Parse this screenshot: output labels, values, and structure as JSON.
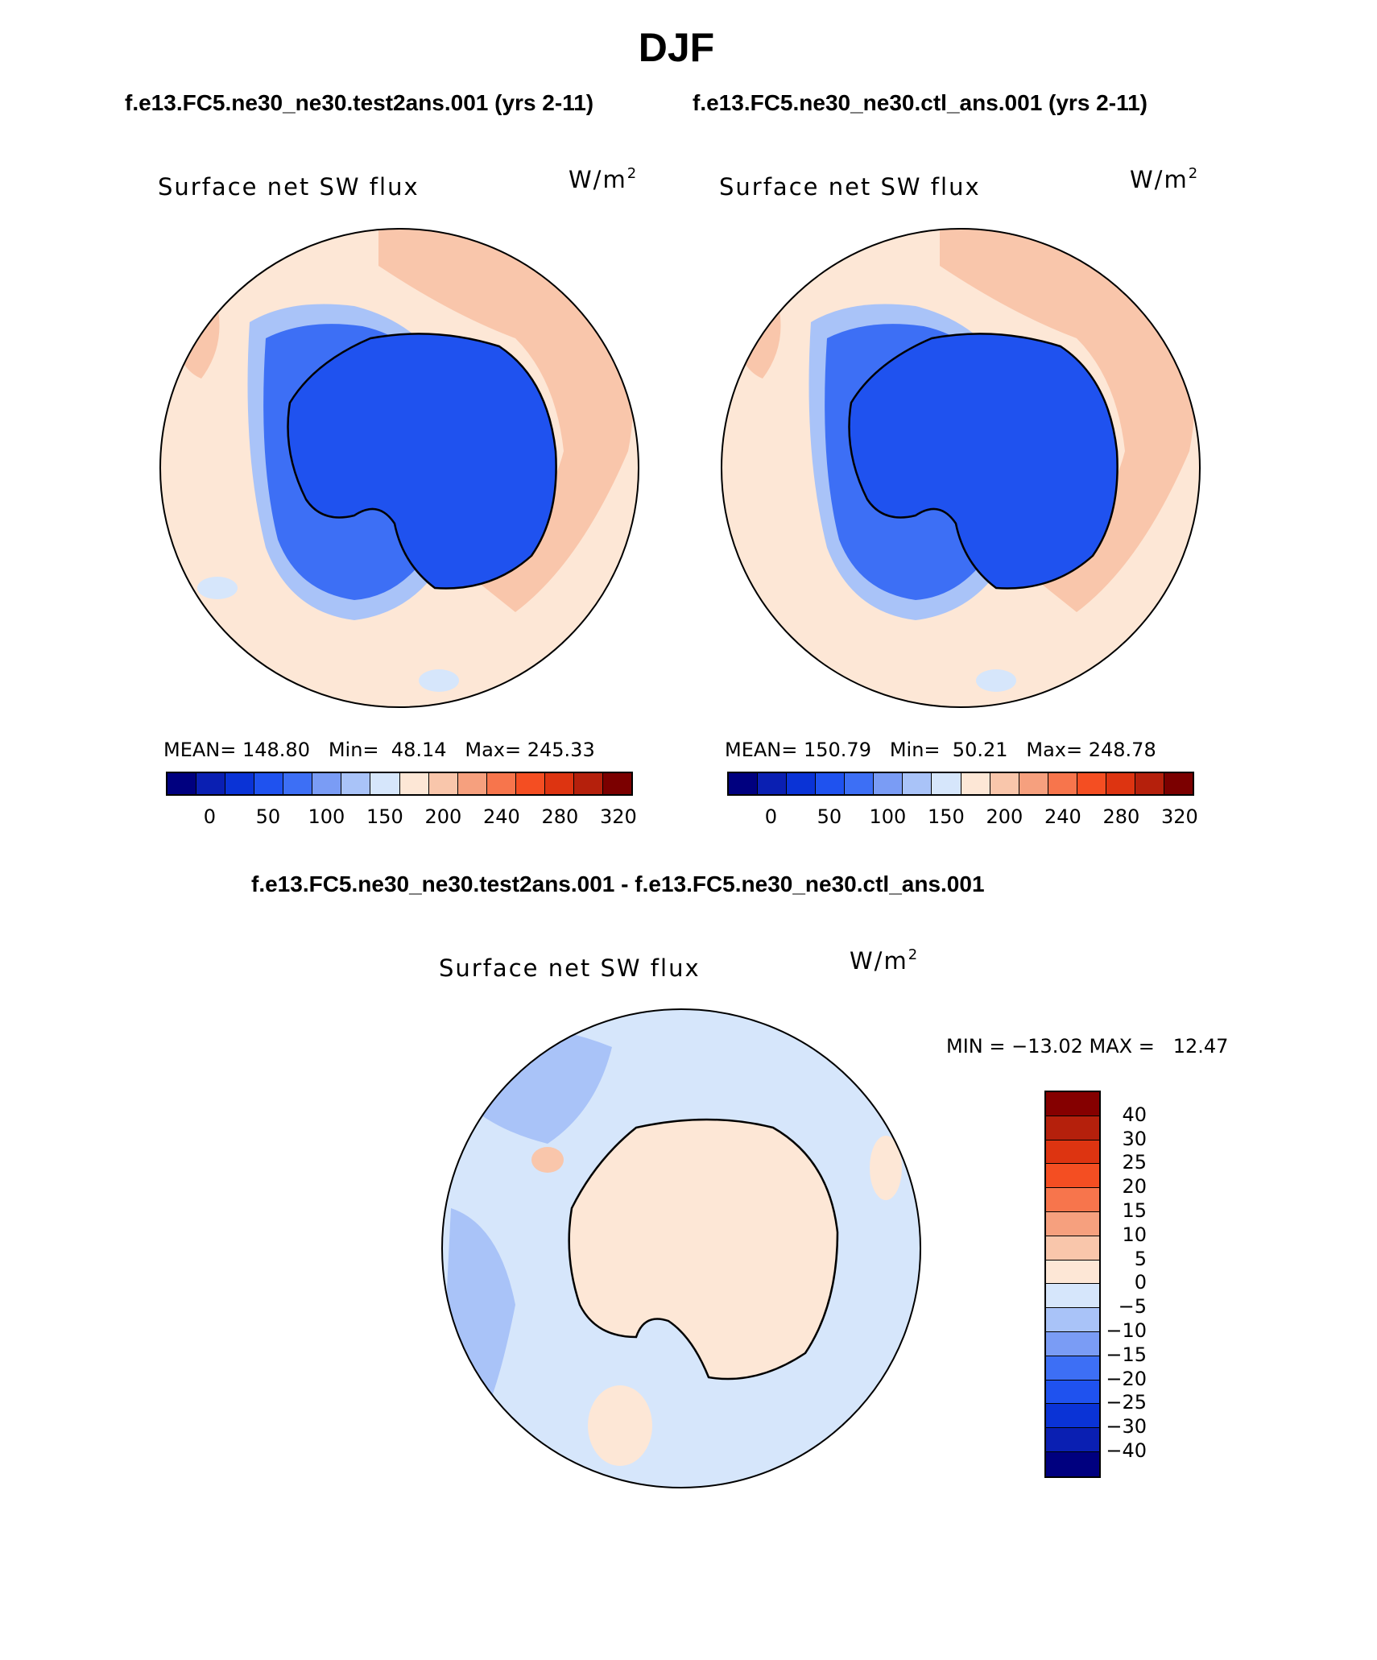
{
  "title": "DJF",
  "top_left_subtitle": "f.e13.FC5.ne30_ne30.test2ans.001 (yrs 2-11)",
  "top_right_subtitle": "f.e13.FC5.ne30_ne30.ctl_ans.001 (yrs 2-11)",
  "diff_subtitle": "f.e13.FC5.ne30_ne30.test2ans.001 - f.e13.FC5.ne30_ne30.ctl_ans.001",
  "panels": [
    {
      "title": "Surface net SW flux",
      "units": "W/m",
      "units_exp": "2",
      "stats": "MEAN= 148.80   Min=  48.14   Max= 245.33"
    },
    {
      "title": "Surface net SW flux",
      "units": "W/m",
      "units_exp": "2",
      "stats": "MEAN= 150.79   Min=  50.21   Max= 248.78"
    },
    {
      "title": "Surface net SW flux",
      "units": "W/m",
      "units_exp": "2",
      "stats": "MIN = −13.02 MAX =   12.47"
    }
  ],
  "abs_colorbar": {
    "labels": [
      "0",
      "50",
      "100",
      "150",
      "200",
      "240",
      "280",
      "320"
    ],
    "colors": [
      "#00007f",
      "#0a1fb2",
      "#0a33d6",
      "#1f52ef",
      "#3d6ff5",
      "#7a9cf5",
      "#a9c3f8",
      "#d6e6fb",
      "#fde7d6",
      "#f9c6ab",
      "#f6a07e",
      "#f7754c",
      "#f44e22",
      "#dd3411",
      "#b5200c",
      "#7b0000"
    ]
  },
  "diff_colorbar": {
    "labels": [
      "40",
      "30",
      "25",
      "20",
      "15",
      "10",
      "5",
      "0",
      "−5",
      "−10",
      "−15",
      "−20",
      "−25",
      "−30",
      "−40"
    ],
    "colors": [
      "#850000",
      "#b5200c",
      "#dd3411",
      "#f44e22",
      "#f7754c",
      "#f6a07e",
      "#f9c6ab",
      "#fde7d6",
      "#d6e6fb",
      "#a9c3f8",
      "#7a9cf5",
      "#3d6ff5",
      "#1f52ef",
      "#0a33d6",
      "#0a1fb2",
      "#00007f"
    ]
  }
}
